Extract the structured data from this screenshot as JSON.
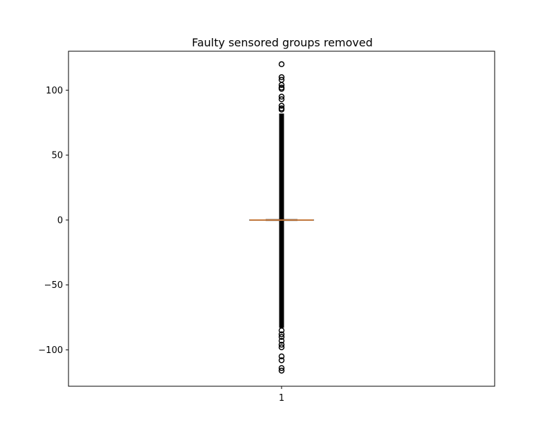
{
  "chart_data": {
    "type": "boxplot",
    "title": "Faulty sensored groups removed",
    "xlabel": "",
    "ylabel": "",
    "categories": [
      "1"
    ],
    "ylim": [
      -128,
      130
    ],
    "yticks": [
      -100,
      -50,
      0,
      50,
      100
    ],
    "yticklabels": [
      "−100",
      "−50",
      "0",
      "50",
      "100"
    ],
    "boxes": [
      {
        "category": "1",
        "median": 0,
        "q1": -0.2,
        "q3": 0.2,
        "whisker_low": -0.4,
        "whisker_high": 0.4,
        "outlier_range": [
          -116,
          120
        ],
        "outlier_dense_range": [
          -83,
          82
        ],
        "outliers_sparse": [
          120,
          110,
          108,
          104,
          102,
          101,
          95,
          93,
          88,
          86,
          85,
          -85,
          -88,
          -90,
          -93,
          -96,
          -98,
          -105,
          -108,
          -114,
          -116
        ]
      }
    ],
    "colors": {
      "median": "#c87a3c",
      "box": "#000000",
      "outlier": "#000000"
    },
    "grid": false,
    "legend": "none"
  }
}
